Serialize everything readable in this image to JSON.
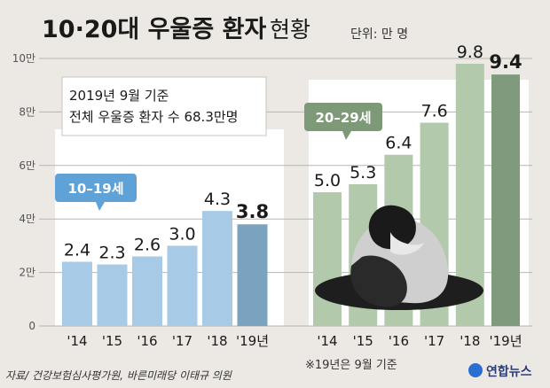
{
  "header": {
    "title": "10·20대 우울증 환자",
    "title_sub": "현황",
    "unit": "단위: 만 명"
  },
  "note_box": {
    "line1": "2019년 9월 기준",
    "line2": "전체 우울증 환자 수 68.3만명"
  },
  "footer": {
    "source": "자료/ 건강보험심사평가원, 바른미래당 이태규 의원",
    "footnote": "※19년은 9월 기준",
    "logo": "연합뉴스"
  },
  "colors": {
    "background": "#ece8e3",
    "teen_bar": "#a7cbe6",
    "teen_bar_last": "#7aa3bf",
    "teen_label": "#5fa2d8",
    "twenties_bar": "#b2c9ab",
    "twenties_bar_last": "#7f9a7c",
    "twenties_label": "#7d9977",
    "panel": "#ffffff",
    "gridline": "#b9b5af"
  },
  "chart_data": {
    "type": "bar",
    "ylabel": "단위: 만 명",
    "ylim": [
      0,
      10
    ],
    "yticks": [
      {
        "value": 0,
        "label": "0"
      },
      {
        "value": 2,
        "label": "2만"
      },
      {
        "value": 4,
        "label": "4만"
      },
      {
        "value": 6,
        "label": "6만"
      },
      {
        "value": 8,
        "label": "8만"
      },
      {
        "value": 10,
        "label": "10만"
      }
    ],
    "groups": [
      {
        "name": "10–19세",
        "categories": [
          "'14",
          "'15",
          "'16",
          "'17",
          "'18",
          "'19년"
        ],
        "values": [
          2.4,
          2.3,
          2.6,
          3.0,
          4.3,
          3.8
        ],
        "labels": [
          "2.4",
          "2.3",
          "2.6",
          "3.0",
          "4.3",
          "3.8"
        ]
      },
      {
        "name": "20–29세",
        "categories": [
          "'14",
          "'15",
          "'16",
          "'17",
          "'18",
          "'19년"
        ],
        "values": [
          5.0,
          5.3,
          6.4,
          7.6,
          9.8,
          9.4
        ],
        "labels": [
          "5.0",
          "5.3",
          "6.4",
          "7.6",
          "9.8",
          "9.4"
        ]
      }
    ]
  }
}
